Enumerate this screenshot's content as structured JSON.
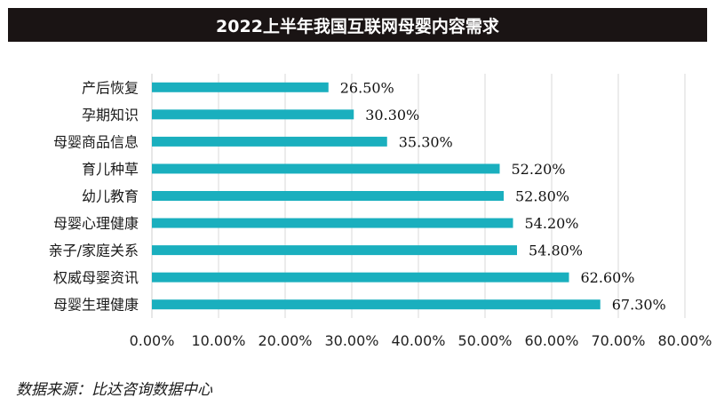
{
  "chart_data": {
    "type": "bar",
    "orientation": "horizontal",
    "title": "2022上半年我国互联网母婴内容需求",
    "categories": [
      "产后恢复",
      "孕期知识",
      "母婴商品信息",
      "育儿种草",
      "幼儿教育",
      "母婴心理健康",
      "亲子/家庭关系",
      "权威母婴资讯",
      "母婴生理健康"
    ],
    "values": [
      26.5,
      30.3,
      35.3,
      52.2,
      52.8,
      54.2,
      54.8,
      62.6,
      67.3
    ],
    "value_labels": [
      "26.50%",
      "30.30%",
      "35.30%",
      "52.20%",
      "52.80%",
      "54.20%",
      "54.80%",
      "62.60%",
      "67.30%"
    ],
    "xlim": [
      0,
      80
    ],
    "xticks": [
      "0.00%",
      "10.00%",
      "20.00%",
      "30.00%",
      "40.00%",
      "50.00%",
      "60.00%",
      "70.00%",
      "80.00%"
    ],
    "grid": true,
    "bar_color": "#1aafbe",
    "grid_color": "#d9d9d9"
  },
  "source": "数据来源：比达咨询数据中心"
}
